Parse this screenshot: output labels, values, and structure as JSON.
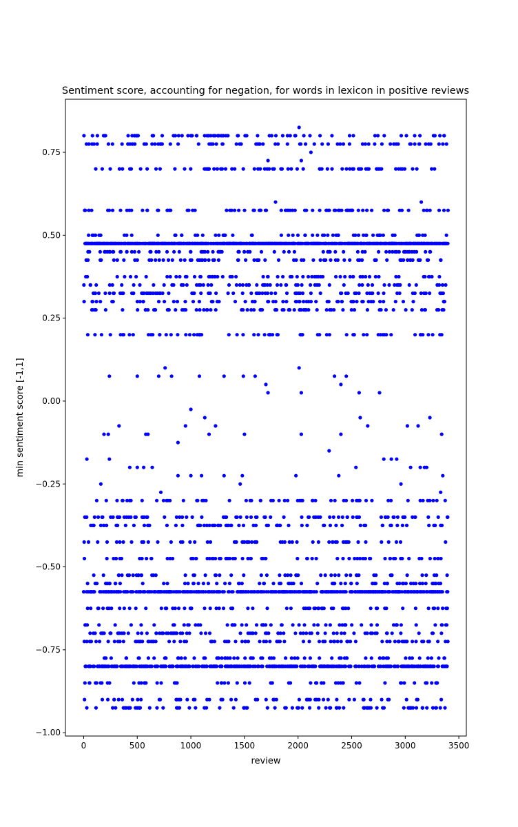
{
  "chart_data": {
    "type": "scatter",
    "title": "Sentiment score, accounting for negation, for words in lexicon in positive reviews",
    "xlabel": "review",
    "ylabel": "min sentiment score [-1,1]",
    "xlim": [
      -170,
      3570
    ],
    "ylim": [
      -1.01,
      0.91
    ],
    "xticks": [
      0,
      500,
      1000,
      1500,
      2000,
      2500,
      3000,
      3500
    ],
    "xtick_labels": [
      "0",
      "500",
      "1000",
      "1500",
      "2000",
      "2500",
      "3000",
      "3500"
    ],
    "yticks": [
      -1.0,
      -0.75,
      -0.5,
      -0.25,
      0.0,
      0.25,
      0.5,
      0.75
    ],
    "ytick_labels": [
      "−1.00",
      "−0.75",
      "−0.50",
      "−0.25",
      "0.00",
      "0.25",
      "0.50",
      "0.75"
    ],
    "grid": false,
    "legend": "none",
    "marker_color": "#0000ff",
    "x_count": 3400,
    "series": [
      {
        "y_levels": [
          0.8,
          0.775,
          0.7,
          0.575,
          0.5,
          0.475,
          0.45,
          0.425,
          0.375,
          0.35,
          0.325,
          0.3,
          0.275,
          0.2,
          -0.3,
          -0.35,
          -0.375,
          -0.425,
          -0.475,
          -0.525,
          -0.55,
          -0.575,
          -0.625,
          -0.675,
          -0.7,
          -0.725,
          -0.775,
          -0.8,
          -0.85,
          -0.9,
          -0.925
        ],
        "sparse_points": [
          [
            240,
            0.075
          ],
          [
            500,
            0.075
          ],
          [
            700,
            0.075
          ],
          [
            760,
            0.1
          ],
          [
            820,
            0.075
          ],
          [
            1080,
            0.075
          ],
          [
            1310,
            0.075
          ],
          [
            1490,
            0.075
          ],
          [
            1600,
            0.075
          ],
          [
            1700,
            0.05
          ],
          [
            1720,
            0.025
          ],
          [
            2010,
            0.1
          ],
          [
            2030,
            0.025
          ],
          [
            2340,
            0.075
          ],
          [
            2400,
            0.05
          ],
          [
            2450,
            0.075
          ],
          [
            2570,
            0.025
          ],
          [
            2760,
            0.025
          ],
          [
            2010,
            0.825
          ],
          [
            2120,
            0.75
          ],
          [
            3150,
            0.6
          ],
          [
            1790,
            0.6
          ],
          [
            1720,
            0.725
          ],
          [
            2030,
            0.725
          ],
          [
            1000,
            -0.025
          ],
          [
            1130,
            -0.05
          ],
          [
            950,
            -0.075
          ],
          [
            1170,
            -0.1
          ],
          [
            2030,
            -0.1
          ],
          [
            2400,
            -0.1
          ],
          [
            2580,
            -0.05
          ],
          [
            3230,
            -0.05
          ],
          [
            2290,
            -0.15
          ],
          [
            880,
            -0.125
          ],
          [
            330,
            -0.075
          ],
          [
            580,
            -0.1
          ],
          [
            600,
            -0.1
          ],
          [
            190,
            -0.1
          ],
          [
            230,
            -0.1
          ],
          [
            1500,
            -0.1
          ],
          [
            3020,
            -0.075
          ],
          [
            3120,
            -0.075
          ],
          [
            3340,
            -0.1
          ],
          [
            1230,
            -0.075
          ],
          [
            2650,
            -0.075
          ],
          [
            30,
            -0.175
          ],
          [
            240,
            -0.175
          ],
          [
            2800,
            -0.175
          ],
          [
            2870,
            -0.175
          ],
          [
            2920,
            -0.175
          ],
          [
            3140,
            -0.2
          ],
          [
            3180,
            -0.2
          ],
          [
            3200,
            -0.2
          ],
          [
            3050,
            -0.2
          ],
          [
            430,
            -0.2
          ],
          [
            500,
            -0.2
          ],
          [
            560,
            -0.2
          ],
          [
            640,
            -0.2
          ],
          [
            2540,
            -0.2
          ],
          [
            3350,
            -0.225
          ],
          [
            880,
            -0.225
          ],
          [
            1000,
            -0.225
          ],
          [
            1100,
            -0.225
          ],
          [
            1310,
            -0.225
          ],
          [
            1480,
            -0.225
          ],
          [
            1980,
            -0.225
          ],
          [
            2380,
            -0.225
          ],
          [
            160,
            -0.25
          ],
          [
            1460,
            -0.25
          ],
          [
            2960,
            -0.25
          ],
          [
            3330,
            -0.275
          ],
          [
            720,
            -0.275
          ]
        ]
      }
    ]
  }
}
